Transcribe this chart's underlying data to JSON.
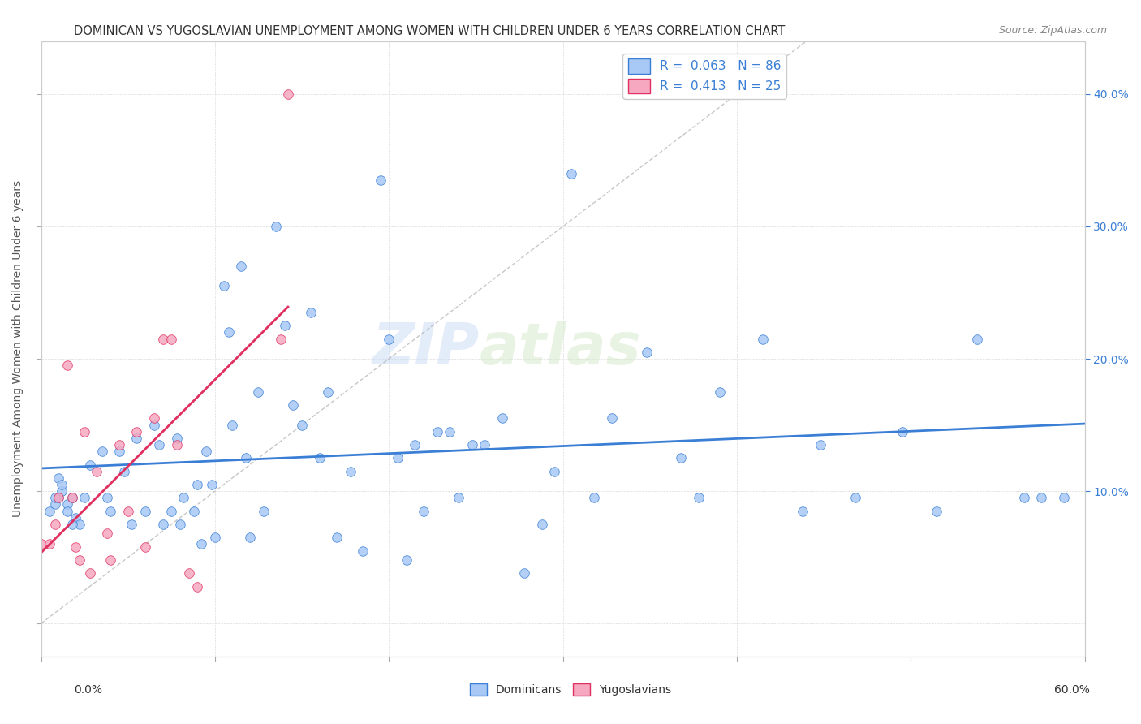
{
  "title": "DOMINICAN VS YUGOSLAVIAN UNEMPLOYMENT AMONG WOMEN WITH CHILDREN UNDER 6 YEARS CORRELATION CHART",
  "source": "Source: ZipAtlas.com",
  "ylabel": "Unemployment Among Women with Children Under 6 years",
  "xlim": [
    0.0,
    0.6
  ],
  "ylim": [
    -0.025,
    0.44
  ],
  "dominican_color": "#a8c8f5",
  "yugoslav_color": "#f5a8c0",
  "dominican_line_color": "#3a7fd5",
  "yugoslav_line_color": "#e03060",
  "trendline_dashed_color": "#b0b0b0",
  "background_color": "#ffffff",
  "grid_color": "#d8d8d8",
  "dominicans_x": [
    0.005,
    0.008,
    0.01,
    0.012,
    0.015,
    0.01,
    0.012,
    0.008,
    0.02,
    0.018,
    0.015,
    0.022,
    0.025,
    0.018,
    0.028,
    0.035,
    0.038,
    0.04,
    0.045,
    0.048,
    0.052,
    0.055,
    0.06,
    0.065,
    0.068,
    0.07,
    0.075,
    0.078,
    0.08,
    0.082,
    0.088,
    0.09,
    0.092,
    0.095,
    0.098,
    0.1,
    0.105,
    0.108,
    0.11,
    0.115,
    0.118,
    0.12,
    0.125,
    0.128,
    0.135,
    0.14,
    0.145,
    0.15,
    0.155,
    0.16,
    0.165,
    0.17,
    0.178,
    0.185,
    0.195,
    0.2,
    0.205,
    0.21,
    0.215,
    0.22,
    0.228,
    0.235,
    0.24,
    0.248,
    0.255,
    0.265,
    0.278,
    0.288,
    0.295,
    0.305,
    0.318,
    0.328,
    0.348,
    0.368,
    0.378,
    0.39,
    0.415,
    0.438,
    0.448,
    0.468,
    0.495,
    0.515,
    0.538,
    0.565,
    0.575,
    0.588
  ],
  "dominicans_y": [
    0.085,
    0.09,
    0.095,
    0.1,
    0.09,
    0.11,
    0.105,
    0.095,
    0.08,
    0.095,
    0.085,
    0.075,
    0.095,
    0.075,
    0.12,
    0.13,
    0.095,
    0.085,
    0.13,
    0.115,
    0.075,
    0.14,
    0.085,
    0.15,
    0.135,
    0.075,
    0.085,
    0.14,
    0.075,
    0.095,
    0.085,
    0.105,
    0.06,
    0.13,
    0.105,
    0.065,
    0.255,
    0.22,
    0.15,
    0.27,
    0.125,
    0.065,
    0.175,
    0.085,
    0.3,
    0.225,
    0.165,
    0.15,
    0.235,
    0.125,
    0.175,
    0.065,
    0.115,
    0.055,
    0.335,
    0.215,
    0.125,
    0.048,
    0.135,
    0.085,
    0.145,
    0.145,
    0.095,
    0.135,
    0.135,
    0.155,
    0.038,
    0.075,
    0.115,
    0.34,
    0.095,
    0.155,
    0.205,
    0.125,
    0.095,
    0.175,
    0.215,
    0.085,
    0.135,
    0.095,
    0.145,
    0.085,
    0.215,
    0.095,
    0.095,
    0.095
  ],
  "yugoslavians_x": [
    0.0,
    0.005,
    0.008,
    0.01,
    0.015,
    0.018,
    0.02,
    0.022,
    0.025,
    0.028,
    0.032,
    0.038,
    0.04,
    0.045,
    0.05,
    0.055,
    0.06,
    0.065,
    0.07,
    0.075,
    0.078,
    0.085,
    0.09,
    0.138,
    0.142
  ],
  "yugoslavians_y": [
    0.06,
    0.06,
    0.075,
    0.095,
    0.195,
    0.095,
    0.058,
    0.048,
    0.145,
    0.038,
    0.115,
    0.068,
    0.048,
    0.135,
    0.085,
    0.145,
    0.058,
    0.155,
    0.215,
    0.215,
    0.135,
    0.038,
    0.028,
    0.215,
    0.4
  ],
  "watermark_line1": "ZIP",
  "watermark_line2": "atlas",
  "figsize": [
    14.06,
    8.92
  ],
  "dpi": 100
}
